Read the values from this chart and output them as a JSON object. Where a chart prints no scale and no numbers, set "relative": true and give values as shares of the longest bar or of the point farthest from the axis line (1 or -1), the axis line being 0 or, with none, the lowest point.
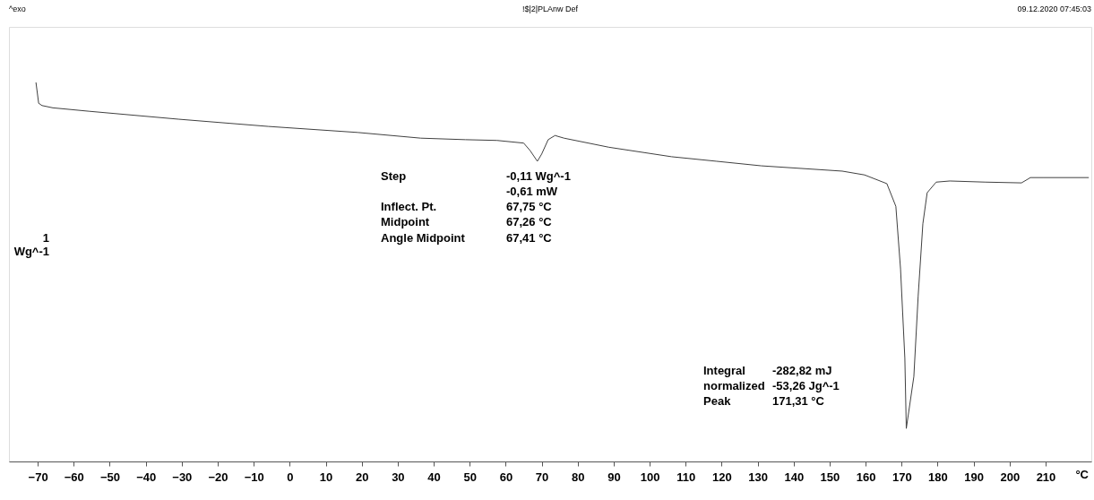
{
  "chart_data": {
    "type": "line",
    "relative": true,
    "title": "!$|2|PLAnw Def",
    "xlabel": "°C",
    "ylabel": "1\nWg^-1",
    "x": [
      -70.5,
      -69.75,
      -68.8,
      -65.8,
      -55.8,
      -30.9,
      -6.0,
      18.9,
      36.4,
      48.8,
      57.6,
      65.0,
      66.8,
      68.8,
      70.0,
      71.8,
      73.7,
      76.2,
      88.7,
      106.1,
      118.6,
      131.0,
      153.5,
      159.7,
      165.9,
      168.4,
      169.7,
      170.9,
      171.3,
      173.4,
      174.6,
      175.9,
      177.1,
      179.6,
      183.4,
      193.3,
      203.3,
      205.8,
      209.5,
      222.0
    ],
    "series": [
      {
        "color": "#404040",
        "values": [
          1.0,
          0.945,
          0.939,
          0.933,
          0.924,
          0.903,
          0.884,
          0.868,
          0.853,
          0.849,
          0.847,
          0.84,
          0.82,
          0.792,
          0.811,
          0.849,
          0.86,
          0.853,
          0.829,
          0.804,
          0.792,
          0.78,
          0.766,
          0.756,
          0.733,
          0.673,
          0.508,
          0.272,
          0.087,
          0.224,
          0.437,
          0.627,
          0.709,
          0.737,
          0.74,
          0.737,
          0.735,
          0.749,
          0.749,
          0.749
        ]
      }
    ],
    "xlim": [
      -78,
      222.7
    ],
    "xticks": [
      -70,
      -60,
      -50,
      -40,
      -30,
      -20,
      -10,
      0,
      10,
      20,
      30,
      40,
      50,
      60,
      70,
      80,
      90,
      100,
      110,
      120,
      130,
      140,
      150,
      160,
      170,
      180,
      190,
      200,
      210
    ],
    "annotations": [
      "^exo",
      "09.12.2020 07:45:03",
      "Step",
      "-0,11 Wg^-1",
      "-0,61 mW",
      "Inflect. Pt.",
      "67,75 °C",
      "Midpoint",
      "67,26 °C",
      "Angle Midpoint",
      "67,41 °C",
      "Integral",
      "-282,82 mJ",
      "  normalized",
      "-53,26 Jg^-1",
      "Peak",
      "171,31 °C"
    ]
  }
}
